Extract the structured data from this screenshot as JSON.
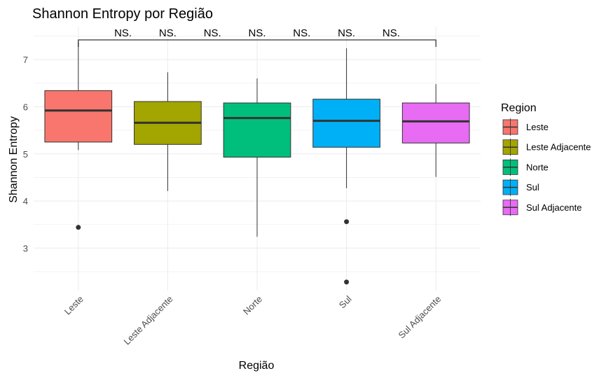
{
  "chart_data": {
    "type": "box",
    "title": "Shannon Entropy por Região",
    "xlabel": "Região",
    "ylabel": "Shannon Entropy",
    "ylim": [
      2.1,
      7.7
    ],
    "yticks": [
      3,
      4,
      5,
      6,
      7
    ],
    "grid": true,
    "legend": {
      "title": "Region",
      "position": "right"
    },
    "categories": [
      "Leste",
      "Leste Adjacente",
      "Norte",
      "Sul",
      "Sul Adjacente"
    ],
    "colors": [
      "#F8766D",
      "#A3A500",
      "#00BF7D",
      "#00B0F6",
      "#E76BF3"
    ],
    "boxes": [
      {
        "whisker_low": 5.08,
        "q1": 5.25,
        "median": 5.92,
        "q3": 6.34,
        "whisker_high": 7.37,
        "outliers": [
          3.44
        ]
      },
      {
        "whisker_low": 4.21,
        "q1": 5.2,
        "median": 5.66,
        "q3": 6.11,
        "whisker_high": 6.73,
        "outliers": []
      },
      {
        "whisker_low": 3.24,
        "q1": 4.93,
        "median": 5.76,
        "q3": 6.08,
        "whisker_high": 6.6,
        "outliers": []
      },
      {
        "whisker_low": 4.27,
        "q1": 5.14,
        "median": 5.7,
        "q3": 6.16,
        "whisker_high": 7.24,
        "outliers": [
          3.56,
          2.28
        ]
      },
      {
        "whisker_low": 4.51,
        "q1": 5.23,
        "median": 5.69,
        "q3": 6.08,
        "whisker_high": 6.48,
        "outliers": []
      }
    ],
    "significance": {
      "bracket_from": "Leste",
      "bracket_to": "Sul Adjacente",
      "labels": [
        "NS.",
        "NS.",
        "NS.",
        "NS.",
        "NS.",
        "NS.",
        "NS."
      ]
    }
  }
}
